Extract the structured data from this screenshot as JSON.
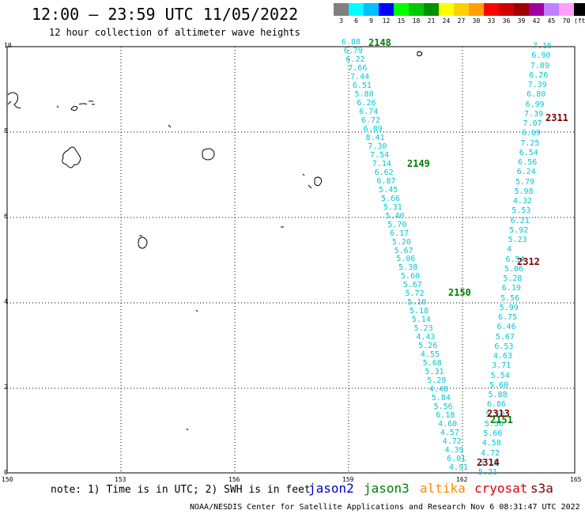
{
  "title": "12:00 – 23:59 UTC 11/05/2022",
  "subtitle": "12 hour collection of altimeter wave heights",
  "legend": {
    "colors": [
      "#808080",
      "#00ffff",
      "#00c0ff",
      "#0000ff",
      "#00ff00",
      "#00c800",
      "#009000",
      "#ffff00",
      "#ffd000",
      "#ffa000",
      "#ff0000",
      "#d00000",
      "#a00000",
      "#a000a0",
      "#c080ff",
      "#ffa0ff",
      "#000000"
    ],
    "labels": [
      "3",
      "6",
      "9",
      "12",
      "15",
      "18",
      "21",
      "24",
      "27",
      "30",
      "33",
      "36",
      "39",
      "42",
      "45",
      "70",
      "(ft)"
    ]
  },
  "axes": {
    "lat_labels": [
      "10",
      "8",
      "6",
      "4",
      "2",
      "0"
    ],
    "lon_labels": [
      "150",
      "153",
      "156",
      "159",
      "162",
      "165"
    ]
  },
  "passes": [
    {
      "id": "2148",
      "satellite": "jason3",
      "color": "#008000"
    },
    {
      "id": "2149",
      "satellite": "jason3",
      "color": "#008000"
    },
    {
      "id": "2150",
      "satellite": "jason3",
      "color": "#008000"
    },
    {
      "id": "2151",
      "satellite": "jason3",
      "color": "#008000"
    },
    {
      "id": "2311",
      "satellite": "s3a",
      "color": "#800000"
    },
    {
      "id": "2312",
      "satellite": "s3a",
      "color": "#800000"
    },
    {
      "id": "2313",
      "satellite": "s3a",
      "color": "#800000"
    },
    {
      "id": "2314",
      "satellite": "s3a",
      "color": "#800000"
    }
  ],
  "track_jason3_values": [
    "6.88",
    "6.79",
    "6.22",
    "7.66",
    "7.44",
    "6.51",
    "5.80",
    "6.26",
    "6.74",
    "6.72",
    "6.89",
    "8.41",
    "7.30",
    "7.54",
    "7.14",
    "6.62",
    "6.87",
    "5.45",
    "5.66",
    "5.31",
    "5.40",
    "5.70",
    "6.17",
    "5.20",
    "5.67",
    "5.06",
    "5.38",
    "5.60",
    "5.67",
    "5.72",
    "5.10",
    "5.18",
    "5.14",
    "5.23",
    "4.43",
    "5.26",
    "4.55",
    "5.68",
    "5.31",
    "5.29",
    "4.48",
    "5.84",
    "5.56",
    "6.18",
    "4.60",
    "4.57",
    "4.72",
    "4.39",
    "6.01",
    "4.91"
  ],
  "track_s3a_values": [
    "7.16",
    "6.90",
    "7.89",
    "6.26",
    "7.39",
    "6.80",
    "6.99",
    "7.39",
    "7.07",
    "6.69",
    "7.25",
    "6.54",
    "6.56",
    "6.24",
    "5.79",
    "5.98",
    "4.32",
    "5.53",
    "6.21",
    "5.92",
    "5.23",
    "4",
    "6.54",
    "5.06",
    "5.28",
    "6.19",
    "5.56",
    "5.99",
    "6.75",
    "6.46",
    "5.67",
    "6.53",
    "4.63",
    "3.71",
    "5.54",
    "5.60",
    "5.88",
    "6.86",
    "5.10",
    "5.50",
    "5.66",
    "4.58",
    "4.72",
    "5.15",
    "5.21"
  ],
  "note": "note: 1) Time is in UTC; 2) SWH is in feet",
  "satellites": [
    {
      "name": "jason2",
      "color": "#0000c8"
    },
    {
      "name": "jason3",
      "color": "#008000"
    },
    {
      "name": "altika",
      "color": "#ff8c00"
    },
    {
      "name": "cryosat",
      "color": "#e00000"
    },
    {
      "name": "s3a",
      "color": "#800000"
    }
  ],
  "footer": "NOAA/NESDIS Center for Satellite Applications and Research   Nov  6 08:31:47 UTC 2022"
}
